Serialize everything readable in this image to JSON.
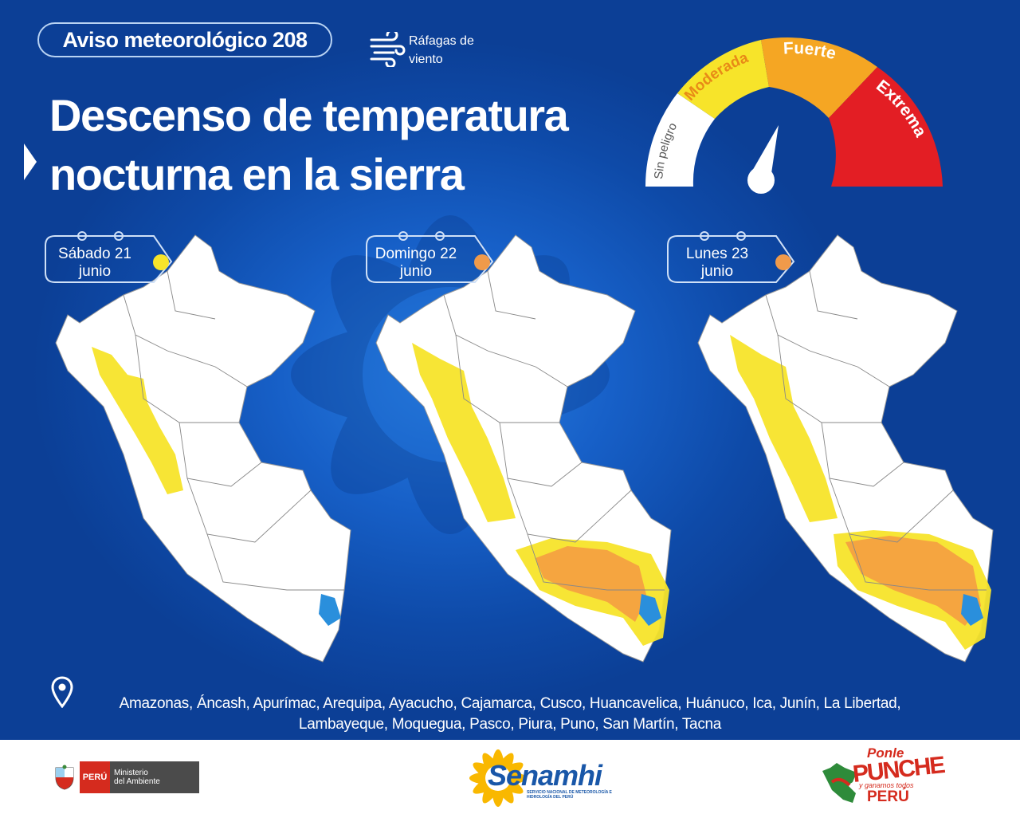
{
  "header": {
    "badge": "Aviso meteorológico 208",
    "wind_label_1": "Ráfagas de",
    "wind_label_2": "viento",
    "title_line1": "Descenso de temperatura",
    "title_line2": "nocturna en la sierra"
  },
  "gauge": {
    "levels": [
      {
        "label": "Sin peligro",
        "color": "#ffffff",
        "text_color": "#555555"
      },
      {
        "label": "Moderada",
        "color": "#f7e42a",
        "text_color": "#e88a17"
      },
      {
        "label": "Fuerte",
        "color": "#f5a623",
        "text_color": "#ffffff"
      },
      {
        "label": "Extrema",
        "color": "#e31e24",
        "text_color": "#ffffff"
      }
    ],
    "needle_level": "Fuerte"
  },
  "days": [
    {
      "day": "Sábado 21",
      "month": "junio",
      "level_color": "#f7e42a",
      "level": "Moderada"
    },
    {
      "day": "Domingo 22",
      "month": "junio",
      "level_color": "#f09a4a",
      "level": "Fuerte"
    },
    {
      "day": "Lunes 23",
      "month": "junio",
      "level_color": "#f09a4a",
      "level": "Fuerte"
    }
  ],
  "colors": {
    "moderada": "#f7e42a",
    "fuerte": "#f5a540",
    "lake": "#2a8fdc",
    "map_fill": "#ffffff"
  },
  "regions": {
    "line1": "Amazonas, Áncash, Apurímac, Arequipa, Ayacucho, Cajamarca, Cusco, Huancavelica, Huánuco, Ica, Junín, La Libertad,",
    "line2": "Lambayeque, Moquegua, Pasco, Piura, Puno, San Martín, Tacna"
  },
  "footer": {
    "peru": "PERÚ",
    "ministry_1": "Ministerio",
    "ministry_2": "del Ambiente",
    "senamhi": "Senamhi",
    "senamhi_sub": "SERVICIO NACIONAL DE METEOROLOGÍA E HIDROLOGÍA DEL PERÚ",
    "ponle_1": "Ponle",
    "ponle_2": "PUNCHE",
    "ponle_3": "y ganamos todos",
    "ponle_4": "PERÚ"
  }
}
